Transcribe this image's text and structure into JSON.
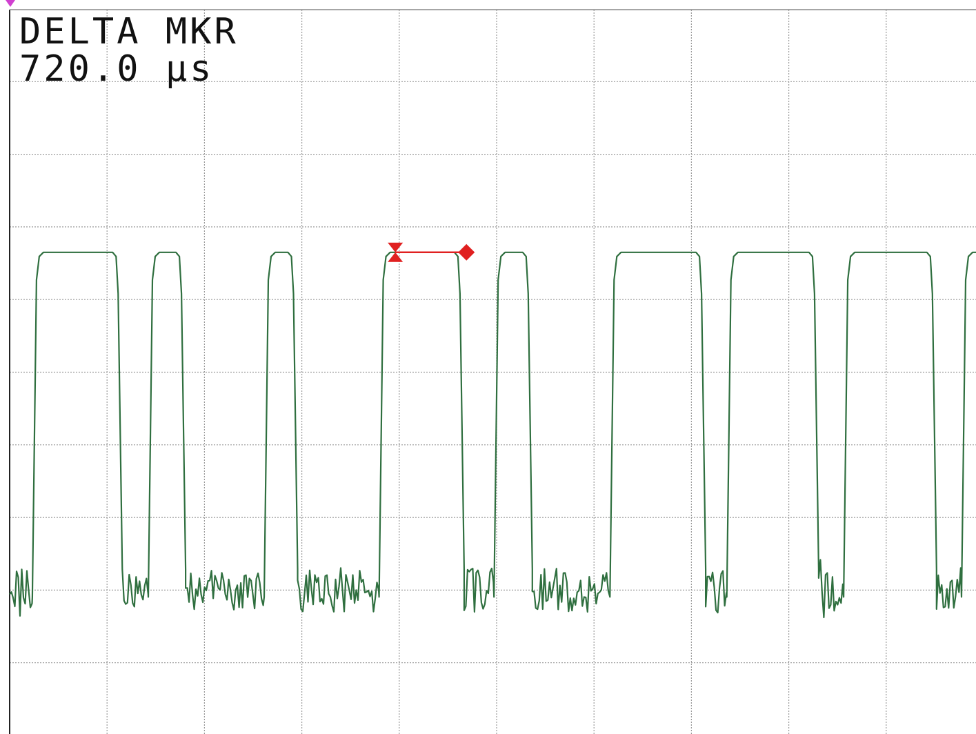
{
  "readout": {
    "label": "DELTA MKR",
    "value": "720.0 µs"
  },
  "chart_data": {
    "type": "line",
    "title": "",
    "xlabel": "",
    "ylabel": "",
    "x_divisions": 10,
    "y_divisions": 10,
    "grid": true,
    "high_level_div": 6.65,
    "low_level_div": 2.0,
    "series": [
      {
        "color": "#2f6f3f",
        "edges_div": [
          0.29,
          1.1,
          1.48,
          1.75,
          2.67,
          2.9,
          3.85,
          4.61,
          5.03,
          5.31,
          6.22,
          7.09,
          7.42,
          8.25,
          8.62,
          9.46,
          9.83
        ]
      }
    ],
    "markers": {
      "delta": "720.0 µs",
      "marker_a_div": 3.96,
      "marker_b_div": 4.69,
      "level_div": 6.65,
      "color": "#e02020"
    },
    "reference_marker_color": "#d040d0"
  }
}
